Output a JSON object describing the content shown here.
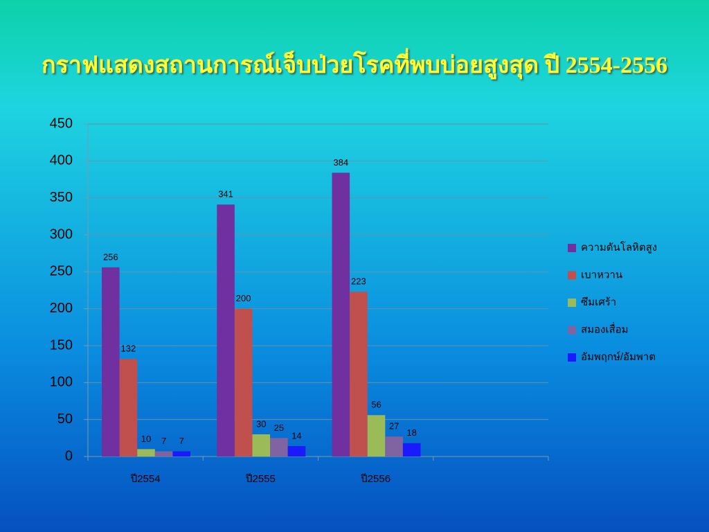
{
  "chart_data": {
    "type": "bar",
    "title": "กราฟแสดงสถานการณ์เจ็บป่วยโรคที่พบบ่อยสูงสุด ปี 2554-2556",
    "categories": [
      "ปี2554",
      "ปี2555",
      "ปี2556",
      null
    ],
    "series": [
      {
        "name": "ความดันโลหิตสูง",
        "color": "#7030a0",
        "values": [
          256,
          341,
          384,
          null
        ]
      },
      {
        "name": "เบาหวาน",
        "color": "#c0504d",
        "values": [
          132,
          200,
          223,
          null
        ]
      },
      {
        "name": "ซึมเศร้า",
        "color": "#9bbb59",
        "values": [
          10,
          30,
          56,
          null
        ]
      },
      {
        "name": "สมองเสื่อม",
        "color": "#8064a2",
        "values": [
          7,
          25,
          27,
          null
        ]
      },
      {
        "name": "อัมพฤกษ์/อัมพาต",
        "color": "#1a1aff",
        "values": [
          7,
          14,
          18,
          null
        ]
      }
    ],
    "ylim": [
      0,
      450
    ],
    "yticks": [
      0,
      50,
      100,
      150,
      200,
      250,
      300,
      350,
      400,
      450
    ],
    "grid": true,
    "legend": "right"
  }
}
